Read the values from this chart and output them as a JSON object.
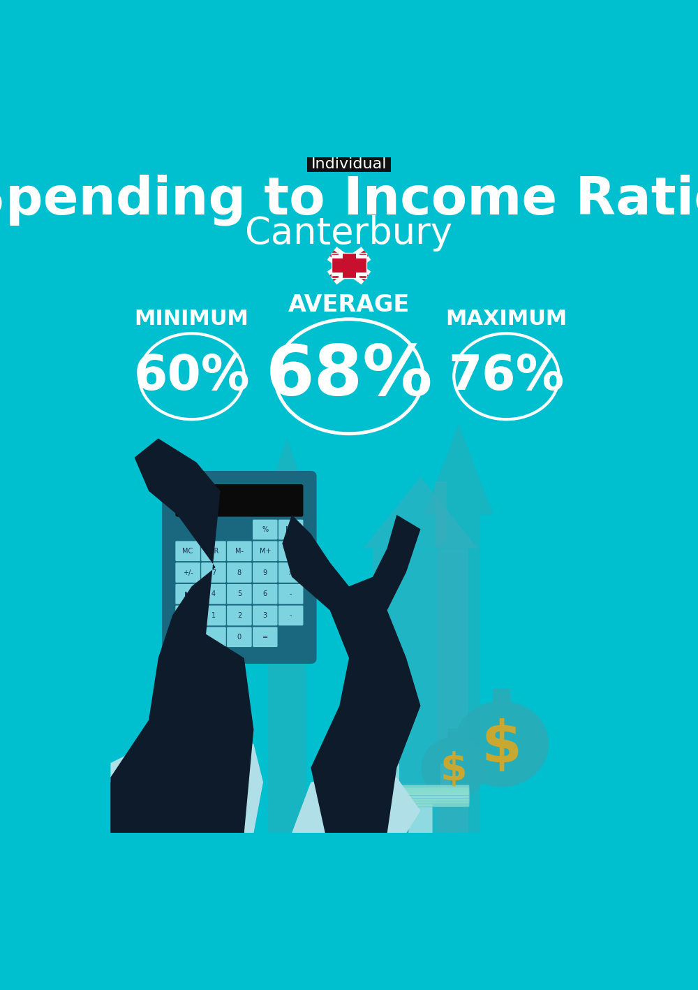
{
  "title": "Spending to Income Ratio",
  "subtitle": "Canterbury",
  "badge_text": "Individual",
  "avg_label": "AVERAGE",
  "min_label": "MINIMUM",
  "max_label": "MAXIMUM",
  "min_value": "60%",
  "avg_value": "68%",
  "max_value": "76%",
  "bg_color": "#00BFCE",
  "text_color": "#FFFFFF",
  "badge_bg": "#111111",
  "badge_text_color": "#FFFFFF",
  "circle_color": "#FFFFFF",
  "dark_teal": "#0099AA",
  "darker_teal": "#007A8A",
  "hand_color": "#0D1B2A",
  "calc_body": "#1a6880",
  "calc_screen": "#0a0a0a",
  "btn_color": "#4ab8cc",
  "btn_light": "#7dd4e0",
  "cuff_color": "#b0dfe8",
  "house_color": "#3AAEBD",
  "arrow_color": "#2AABB8",
  "money_bag_color": "#2AABB8",
  "dollar_color": "#C8A830",
  "bills_color": "#8ADDD0",
  "fig_width": 10.0,
  "fig_height": 14.17,
  "dpi": 100
}
